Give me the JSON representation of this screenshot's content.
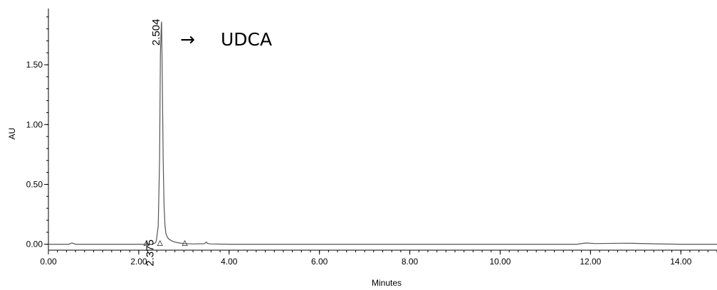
{
  "chart_data": {
    "type": "line",
    "xlabel": "Minutes",
    "ylabel": "AU",
    "xlim": [
      0,
      14.8
    ],
    "ylim": [
      -0.05,
      1.97
    ],
    "x_ticks": [
      "0.00",
      "2.00",
      "4.00",
      "6.00",
      "8.00",
      "10.00",
      "12.00",
      "14.00"
    ],
    "y_ticks": [
      "0.00",
      "0.50",
      "1.00",
      "1.50"
    ],
    "grid": false,
    "series": [
      {
        "x": [
          0,
          0.45,
          0.52,
          0.6,
          1.0,
          1.5,
          2.0,
          2.3,
          2.36,
          2.375,
          2.39,
          2.43,
          2.46,
          2.48,
          2.5,
          2.504,
          2.52,
          2.54,
          2.56,
          2.58,
          2.6,
          2.63,
          2.66,
          2.7,
          2.75,
          2.8,
          2.9,
          3.0,
          3.2,
          3.45,
          3.5,
          3.52,
          3.6,
          4.0,
          6.0,
          8.0,
          10.0,
          11.7,
          11.9,
          12.1,
          12.8,
          13.5,
          14.0,
          14.8
        ],
        "y": [
          0.0,
          0.0,
          0.01,
          0.0,
          0.0,
          0.0,
          0.0,
          0.0,
          0.01,
          0.015,
          0.03,
          0.15,
          0.7,
          1.6,
          1.84,
          1.86,
          1.4,
          0.7,
          0.32,
          0.16,
          0.09,
          0.06,
          0.045,
          0.035,
          0.025,
          0.018,
          0.01,
          0.005,
          0.002,
          0.004,
          0.018,
          0.006,
          0.002,
          0.0,
          0.0,
          0.0,
          0.0,
          0.0,
          0.01,
          0.005,
          0.008,
          0.003,
          0.0,
          0.0
        ]
      }
    ],
    "peaks": [
      {
        "rt": 2.504,
        "label": "2.504",
        "height": 1.86
      },
      {
        "rt": 2.375,
        "label": "2.375",
        "height": 0.015
      }
    ],
    "baseline_markers_x": [
      2.17,
      2.47,
      3.02
    ],
    "annotation": {
      "arrow": "→",
      "text": "UDCA"
    }
  }
}
